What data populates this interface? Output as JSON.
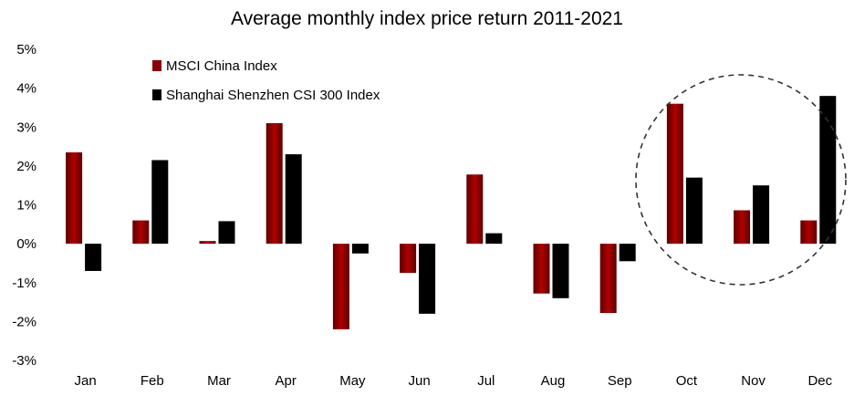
{
  "chart_data": {
    "type": "bar",
    "title": "Average monthly index price return 2011-2021",
    "xlabel": "",
    "ylabel": "",
    "categories": [
      "Jan",
      "Feb",
      "Mar",
      "Apr",
      "May",
      "Jun",
      "Jul",
      "Aug",
      "Sep",
      "Oct",
      "Nov",
      "Dec"
    ],
    "series": [
      {
        "name": "MSCI China Index",
        "color": "#7a0000",
        "values": [
          2.35,
          0.6,
          0.07,
          3.1,
          -2.2,
          -0.75,
          1.78,
          -1.28,
          -1.78,
          3.6,
          0.86,
          0.6
        ]
      },
      {
        "name": "Shanghai Shenzhen CSI 300 Index",
        "color": "#000000",
        "values": [
          -0.7,
          2.15,
          0.58,
          2.3,
          -0.25,
          -1.8,
          0.27,
          -1.4,
          -0.45,
          1.7,
          1.5,
          3.8
        ]
      }
    ],
    "ylim": [
      -3,
      5
    ],
    "yticks": [
      5,
      4,
      3,
      2,
      1,
      0,
      -1,
      -2,
      -3
    ],
    "ytick_labels": [
      "5%",
      "4%",
      "3%",
      "2%",
      "1%",
      "0%",
      "-1%",
      "-2%",
      "-3%"
    ],
    "grid": false,
    "legend": "top-left",
    "annotation": "dashed circle highlighting Oct-Dec"
  }
}
